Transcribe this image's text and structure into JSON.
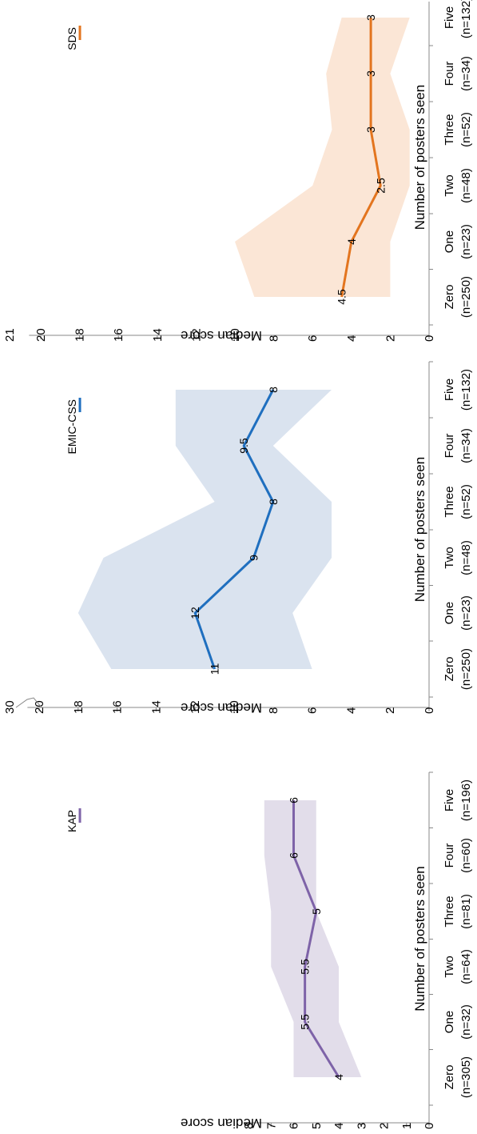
{
  "chart_data": [
    {
      "type": "line",
      "title": "",
      "xlabel": "Number of posters seen",
      "ylabel": "Median score",
      "categories": [
        "Zero",
        "One",
        "Two",
        "Three",
        "Four",
        "Five"
      ],
      "category_counts": [
        "(n=305)",
        "(n=32)",
        "(n=64)",
        "(n=81)",
        "(n=60)",
        "(n=196)"
      ],
      "ylim": [
        0,
        8
      ],
      "yticks": [
        "0",
        "1",
        "2",
        "3",
        "4",
        "5",
        "6",
        "7",
        "8"
      ],
      "series": [
        {
          "name": "KAP",
          "values": [
            4,
            5.5,
            5.5,
            5,
            6,
            6
          ],
          "labels": [
            "4",
            "5.5",
            "5.5",
            "5",
            "6",
            "6"
          ],
          "range_low": [
            3,
            4,
            4,
            5,
            5,
            5
          ],
          "range_high": [
            6,
            6,
            7,
            7,
            7.3,
            7.3
          ],
          "color": "#7e63a8",
          "band_color": "#e2ddea"
        }
      ],
      "legend_position": "top-right",
      "grid": false
    },
    {
      "type": "line",
      "title": "",
      "xlabel": "Number of posters seen",
      "ylabel": "Median score",
      "categories": [
        "Zero",
        "One",
        "Two",
        "Three",
        "Four",
        "Five"
      ],
      "category_counts": [
        "(n=250)",
        "(n=23)",
        "(n=48)",
        "(n=52)",
        "(n=34)",
        "(n=132)"
      ],
      "ylim": [
        0,
        20
      ],
      "axis_break": true,
      "axis_top_label": "30",
      "yticks": [
        "0",
        "2",
        "4",
        "6",
        "8",
        "10",
        "12",
        "14",
        "16",
        "18",
        "20"
      ],
      "series": [
        {
          "name": "EMIC-CSS",
          "values": [
            11,
            12,
            9,
            8,
            9.5,
            8
          ],
          "labels": [
            "11",
            "12",
            "9",
            "8",
            "9.5",
            "8"
          ],
          "range_low": [
            6,
            7,
            5,
            5,
            8,
            5
          ],
          "range_high": [
            16.3,
            18,
            16.7,
            11,
            13,
            13
          ],
          "color": "#1f6fbf",
          "band_color": "#dae3ef"
        }
      ],
      "legend_position": "top-right",
      "grid": false
    },
    {
      "type": "line",
      "title": "",
      "xlabel": "Number of posters seen",
      "ylabel": "Median score",
      "categories": [
        "Zero",
        "One",
        "Two",
        "Three",
        "Four",
        "Five"
      ],
      "category_counts": [
        "(n=250)",
        "(n=23)",
        "(n=48)",
        "(n=52)",
        "(n=34)",
        "(n=132)"
      ],
      "ylim": [
        0,
        20
      ],
      "axis_top_label": "21",
      "yticks": [
        "0",
        "2",
        "4",
        "6",
        "8",
        "10",
        "12",
        "14",
        "16",
        "18",
        "20"
      ],
      "series": [
        {
          "name": "SDS",
          "values": [
            4.5,
            4,
            2.5,
            3,
            3,
            3
          ],
          "labels": [
            "4.5",
            "4",
            "2.5",
            "3",
            "3",
            "3"
          ],
          "range_low": [
            2,
            2,
            1,
            1,
            2,
            1
          ],
          "range_high": [
            9,
            10,
            6,
            5,
            5.3,
            4.5
          ],
          "color": "#e3751f",
          "band_color": "#fbe6d6"
        }
      ],
      "legend_position": "top-right",
      "grid": false
    }
  ]
}
